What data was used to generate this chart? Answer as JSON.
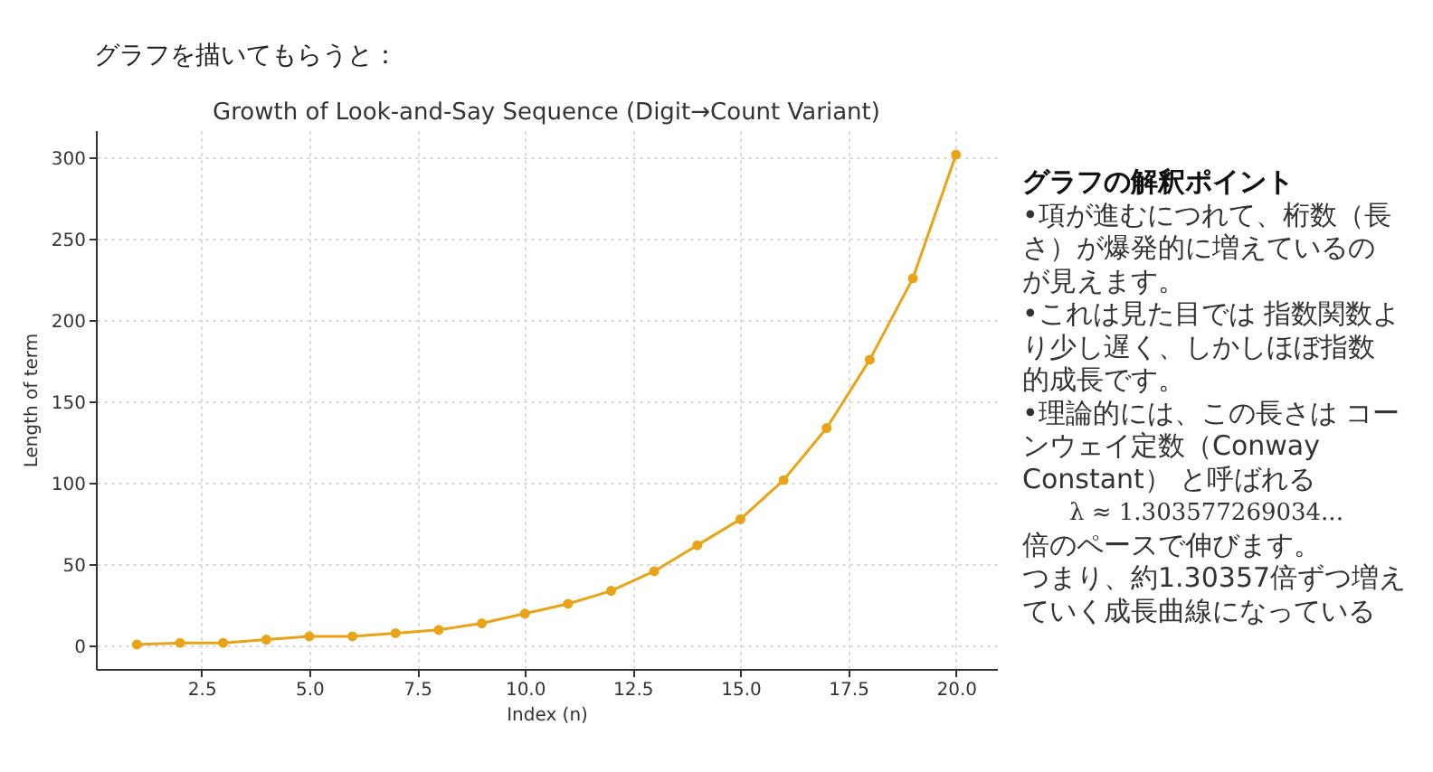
{
  "chart_data": {
    "type": "line",
    "title": "Growth of Look-and-Say Sequence (Digit→Count Variant)",
    "xlabel": "Index (n)",
    "ylabel": "Length of term",
    "x": [
      1,
      2,
      3,
      4,
      5,
      6,
      7,
      8,
      9,
      10,
      11,
      12,
      13,
      14,
      15,
      16,
      17,
      18,
      19,
      20
    ],
    "series": [
      {
        "color": "#e8a317",
        "values": [
          1,
          2,
          2,
          4,
          6,
          6,
          8,
          10,
          14,
          20,
          26,
          34,
          46,
          62,
          78,
          102,
          134,
          176,
          226,
          302
        ]
      }
    ],
    "xlim": [
      0.05,
      20.95
    ],
    "ylim": [
      -14,
      317
    ],
    "xticks": [
      2.5,
      {
        "value": 5,
        "label": "5.0"
      },
      7.5,
      {
        "value": 10,
        "label": "10.0"
      },
      12.5,
      {
        "value": 15,
        "label": "15.0"
      },
      17.5,
      {
        "value": 20,
        "label": "20.0"
      }
    ],
    "yticks": [
      0,
      50,
      100,
      150,
      200,
      250,
      300
    ],
    "grid": true,
    "marker": "circle",
    "annotations": [
      "グラフを描いてもらうと：",
      "グラフの解釈ポイント",
      "•項が進むにつれて、桁数（長さ）が爆発的に増えているのが見えます。",
      "•これは見た目では 指数関数より少し遅く、しかしほぼ指数的成長です。",
      "•理論的には、この長さは コーンウェイ定数（Conway Constant） と呼ばれる",
      "λ ≈ 1.303577269034...",
      "倍のペースで伸びます。",
      "つまり、約1.30357倍ずつ増えていく成長曲線になっている"
    ]
  }
}
